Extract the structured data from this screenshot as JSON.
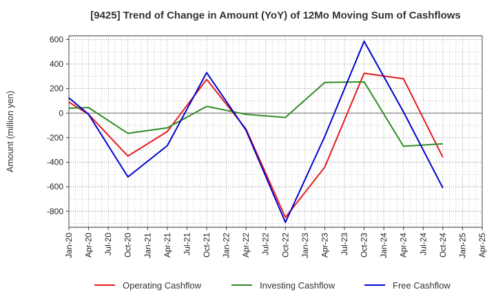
{
  "chart_data": {
    "type": "line",
    "title": "[9425]  Trend of Change in Amount (YoY) of 12Mo Moving Sum of Cashflows",
    "xlabel": "",
    "ylabel": "Amount (million yen)",
    "ylim": [
      -930,
      630
    ],
    "yticks": [
      600,
      400,
      200,
      0,
      -200,
      -400,
      -600,
      -800
    ],
    "categories": [
      "Jan-20",
      "Apr-20",
      "Jul-20",
      "Oct-20",
      "Jan-21",
      "Apr-21",
      "Jul-21",
      "Oct-21",
      "Jan-22",
      "Apr-22",
      "Jul-22",
      "Oct-22",
      "Jan-23",
      "Apr-23",
      "Jul-23",
      "Oct-23",
      "Jan-24",
      "Apr-24",
      "Jul-24",
      "Oct-24",
      "Jan-25",
      "Apr-25"
    ],
    "grid": true,
    "legend_position": "bottom",
    "series": [
      {
        "name": "Operating Cashflow",
        "color": "#e41a1c",
        "values": [
          90,
          -10,
          null,
          -350,
          null,
          -150,
          null,
          275,
          null,
          -130,
          null,
          -850,
          null,
          -440,
          null,
          325,
          null,
          280,
          null,
          -360,
          null,
          null
        ]
      },
      {
        "name": "Investing Cashflow",
        "color": "#2e8b22",
        "values": [
          40,
          45,
          null,
          -165,
          null,
          -120,
          null,
          55,
          null,
          -10,
          null,
          -35,
          null,
          250,
          null,
          255,
          null,
          -270,
          null,
          -250,
          null,
          null
        ]
      },
      {
        "name": "Free Cashflow",
        "color": "#0000cc",
        "values": [
          125,
          -10,
          null,
          -520,
          null,
          -265,
          null,
          330,
          null,
          -140,
          null,
          -890,
          null,
          -190,
          null,
          585,
          null,
          10,
          null,
          -610,
          null,
          null
        ]
      }
    ]
  }
}
